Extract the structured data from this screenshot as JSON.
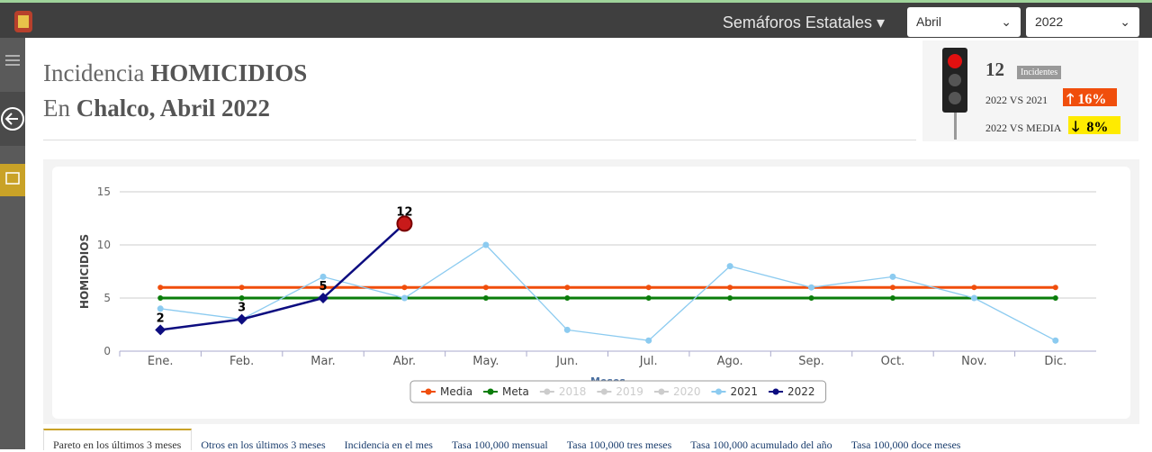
{
  "navbar": {
    "menu": "Semáforos Estatales",
    "month": "Abril",
    "year": "2022"
  },
  "header": {
    "line1": {
      "prefix": "Incidencia",
      "strong": "HOMICIDIOS"
    },
    "line2": {
      "prefix": "En",
      "strong": "Chalco, Abril 2022"
    }
  },
  "summary": {
    "count": "12",
    "count_label": "Incidentes",
    "vs_year": {
      "label": "2022 VS 2021",
      "value": "16%"
    },
    "vs_media": {
      "label": "2022 VS MEDIA",
      "value": "8%"
    }
  },
  "chart_data": {
    "type": "line",
    "y_label": "HOMICIDIOS",
    "x_label": "Meses",
    "categories": [
      "Ene.",
      "Feb.",
      "Mar.",
      "Abr.",
      "May.",
      "Jun.",
      "Jul.",
      "Ago.",
      "Sep.",
      "Oct.",
      "Nov.",
      "Dic."
    ],
    "ylim": [
      0,
      15
    ],
    "yticks": [
      0,
      5,
      10,
      15
    ],
    "grid": true,
    "series": [
      {
        "name": "Media",
        "color": "#f04e0c",
        "values": [
          6,
          6,
          6,
          6,
          6,
          6,
          6,
          6,
          6,
          6,
          6,
          6
        ]
      },
      {
        "name": "Meta",
        "color": "#0a7d0a",
        "values": [
          5,
          5,
          5,
          5,
          5,
          5,
          5,
          5,
          5,
          5,
          5,
          5
        ]
      },
      {
        "name": "2018",
        "color": "#cccccc",
        "visible": false
      },
      {
        "name": "2019",
        "color": "#cccccc",
        "visible": false
      },
      {
        "name": "2020",
        "color": "#cccccc",
        "visible": false
      },
      {
        "name": "2021",
        "color": "#8ccbf0",
        "values": [
          4,
          3,
          7,
          5,
          10,
          2,
          1,
          8,
          6,
          7,
          5,
          1
        ]
      },
      {
        "name": "2022",
        "color": "#0d0d80",
        "values": [
          2,
          3,
          5,
          12,
          null,
          null,
          null,
          null,
          null,
          null,
          null,
          null
        ],
        "data_labels": true
      }
    ]
  },
  "tabs": [
    "Pareto en los últimos 3 meses",
    "Otros en los últimos 3 meses",
    "Incidencia en el mes",
    "Tasa 100,000 mensual",
    "Tasa 100,000 tres meses",
    "Tasa 100,000 acumulado del año",
    "Tasa 100,000 doce meses"
  ]
}
